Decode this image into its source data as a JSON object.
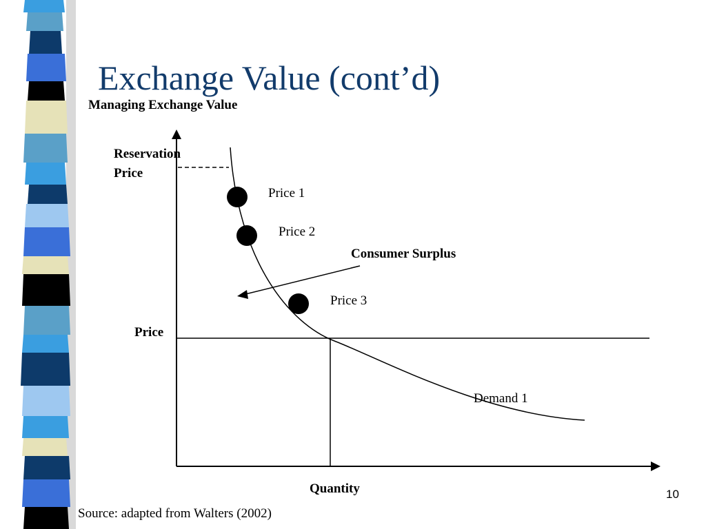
{
  "slide": {
    "title": "Exchange Value (cont’d)",
    "subtitle": "Managing Exchange Value",
    "source": "Source: adapted from Walters (2002)",
    "page_number": "10"
  },
  "diagram": {
    "reservation_price_line1": "Reservation",
    "reservation_price_line2": "Price",
    "price_axis_label": "Price",
    "quantity_axis_label": "Quantity",
    "demand_label": "Demand 1",
    "consumer_surplus_label": "Consumer Surplus",
    "price_points": [
      {
        "label": "Price 1"
      },
      {
        "label": "Price 2"
      },
      {
        "label": "Price 3"
      }
    ]
  },
  "colors": {
    "title": "#123b6b",
    "stripes": [
      "#3a6fd8",
      "#0d3a6a",
      "#000000",
      "#e6e2b8",
      "#5aa0c8",
      "#9ec8f0",
      "#3a9ee0"
    ]
  }
}
